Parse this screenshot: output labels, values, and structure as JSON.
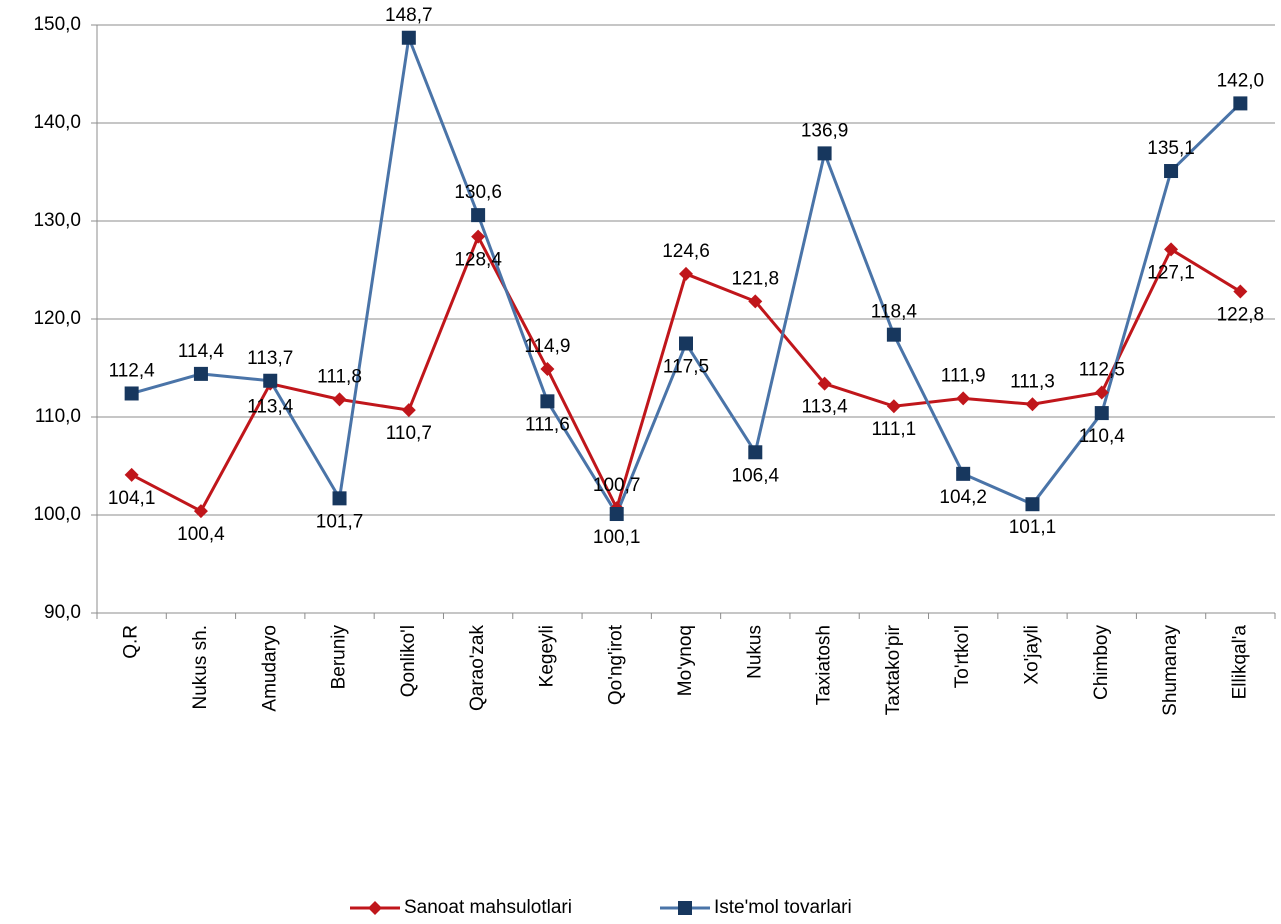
{
  "chart_data": {
    "type": "line",
    "categories": [
      "Q.R",
      "Nukus sh.",
      "Amudaryo",
      "Beruniy",
      "Qonliko'l",
      "Qarao'zak",
      "Kegeyli",
      "Qo'ng'irot",
      "Mo'ynoq",
      "Nukus",
      "Taxiatosh",
      "Taxtako'pir",
      "To'rtko'l",
      "Xo'jayli",
      "Chimboy",
      "Shumanay",
      "Ellikqal'a"
    ],
    "series": [
      {
        "name": "Sanoat mahsulotlari",
        "color": "#c0161b",
        "marker": "diamond",
        "values": [
          104.1,
          100.4,
          113.4,
          111.8,
          110.7,
          128.4,
          114.9,
          100.7,
          124.6,
          121.8,
          113.4,
          111.1,
          111.9,
          111.3,
          112.5,
          127.1,
          122.8
        ],
        "value_labels": [
          "104,1",
          "100,4",
          "113,4",
          "111,8",
          "110,7",
          "128,4",
          "114,9",
          "100,7",
          "124,6",
          "121,8",
          "113,4",
          "111,1",
          "111,9",
          "111,3",
          "112,5",
          "127,1",
          "122,8"
        ]
      },
      {
        "name": "Iste'mol tovarlari",
        "color": "#4a74a8",
        "marker_color": "#17375e",
        "marker": "square",
        "values": [
          112.4,
          114.4,
          113.7,
          101.7,
          148.7,
          130.6,
          111.6,
          100.1,
          117.5,
          106.4,
          136.9,
          118.4,
          104.2,
          101.1,
          110.4,
          135.1,
          142.0
        ],
        "value_labels": [
          "112,4",
          "114,4",
          "113,7",
          "101,7",
          "148,7",
          "130,6",
          "111,6",
          "100,1",
          "117,5",
          "106,4",
          "136,9",
          "118,4",
          "104,2",
          "101,1",
          "110,4",
          "135,1",
          "142,0"
        ]
      }
    ],
    "ylim": [
      90,
      150
    ],
    "yticks": [
      {
        "value": 90,
        "label": "90,0"
      },
      {
        "value": 100,
        "label": "100,0"
      },
      {
        "value": 110,
        "label": "110,0"
      },
      {
        "value": 120,
        "label": "120,0"
      },
      {
        "value": 130,
        "label": "130,0"
      },
      {
        "value": 140,
        "label": "140,0"
      },
      {
        "value": 150,
        "label": "150,0"
      }
    ],
    "grid": true,
    "legend": "bottom"
  }
}
